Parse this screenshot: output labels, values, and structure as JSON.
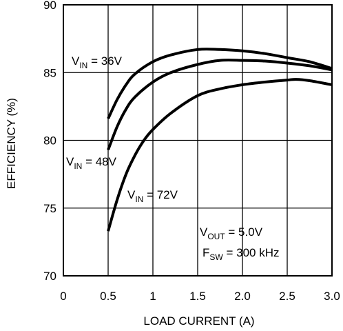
{
  "chart_data": {
    "type": "line",
    "xlabel": "LOAD CURRENT (A)",
    "ylabel": "EFFICIENCY (%)",
    "xlim": [
      0,
      3.0
    ],
    "ylim": [
      70,
      90
    ],
    "x_ticks": [
      0,
      0.5,
      1,
      1.5,
      2.0,
      2.5,
      3.0
    ],
    "x_tick_labels": [
      "0",
      "0.5",
      "1",
      "1.5",
      "2.0",
      "2.5",
      "3.0"
    ],
    "y_ticks": [
      70,
      75,
      80,
      85,
      90
    ],
    "y_tick_labels": [
      "70",
      "75",
      "80",
      "85",
      "90"
    ],
    "grid": true,
    "series": [
      {
        "name_main": "V",
        "name_sub": "IN",
        "name_rest": " = 36V",
        "x": [
          0.5,
          0.6,
          0.7,
          0.8,
          1.0,
          1.2,
          1.5,
          1.75,
          2.0,
          2.25,
          2.5,
          2.75,
          3.0
        ],
        "y": [
          81.6,
          83.0,
          84.1,
          84.9,
          85.8,
          86.3,
          86.7,
          86.7,
          86.6,
          86.4,
          86.1,
          85.8,
          85.3
        ]
      },
      {
        "name_main": "V",
        "name_sub": "IN",
        "name_rest": " = 48V",
        "x": [
          0.5,
          0.6,
          0.7,
          0.8,
          1.0,
          1.2,
          1.5,
          1.75,
          2.0,
          2.25,
          2.5,
          2.75,
          3.0
        ],
        "y": [
          79.3,
          81.0,
          82.3,
          83.2,
          84.3,
          85.0,
          85.6,
          85.9,
          85.9,
          85.85,
          85.7,
          85.5,
          85.2
        ]
      },
      {
        "name_main": "V",
        "name_sub": "IN",
        "name_rest": " = 72V",
        "x": [
          0.5,
          0.6,
          0.7,
          0.8,
          0.9,
          1.0,
          1.2,
          1.5,
          1.75,
          2.0,
          2.25,
          2.5,
          2.6,
          2.75,
          3.0
        ],
        "y": [
          73.3,
          75.6,
          77.5,
          78.9,
          80.0,
          80.8,
          82.0,
          83.3,
          83.8,
          84.1,
          84.3,
          84.45,
          84.5,
          84.4,
          84.1
        ]
      }
    ],
    "annotations": [
      {
        "main": "V",
        "sub": "OUT",
        "rest": " = 5.0V"
      },
      {
        "main": "F",
        "sub": "SW",
        "rest": " = 300 kHz"
      }
    ]
  }
}
